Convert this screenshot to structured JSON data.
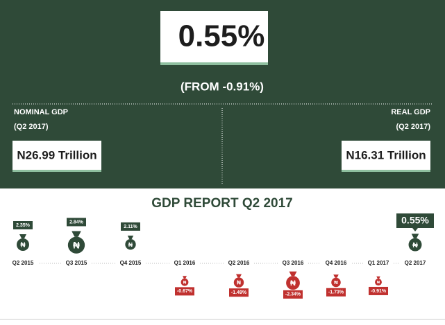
{
  "headline": {
    "value": "0.55%",
    "from": "(FROM -0.91%)"
  },
  "nominal": {
    "label": "NOMINAL GDP",
    "period": "(Q2 2017)",
    "value": "N26.99 Trillion"
  },
  "real": {
    "label": "REAL GDP",
    "period": "(Q2 2017)",
    "value": "N16.31 Trillion"
  },
  "report": {
    "title": "GDP REPORT Q2 2017",
    "bag_symbol": "₦",
    "quarters": [
      {
        "quarter": "Q2 2015",
        "growth": "2.35%"
      },
      {
        "quarter": "Q3 2015",
        "growth": "2.84%"
      },
      {
        "quarter": "Q4 2015",
        "growth": "2.11%"
      },
      {
        "quarter": "Q1 2016",
        "growth": "-0.67%"
      },
      {
        "quarter": "Q2 2016",
        "growth": "-1.49%"
      },
      {
        "quarter": "Q3 2016",
        "growth": "-2.34%"
      },
      {
        "quarter": "Q4 2016",
        "growth": "-1.73%"
      },
      {
        "quarter": "Q1 2017",
        "growth": "-0.91%"
      },
      {
        "quarter": "Q2 2017",
        "growth": "0.55%"
      }
    ]
  }
}
